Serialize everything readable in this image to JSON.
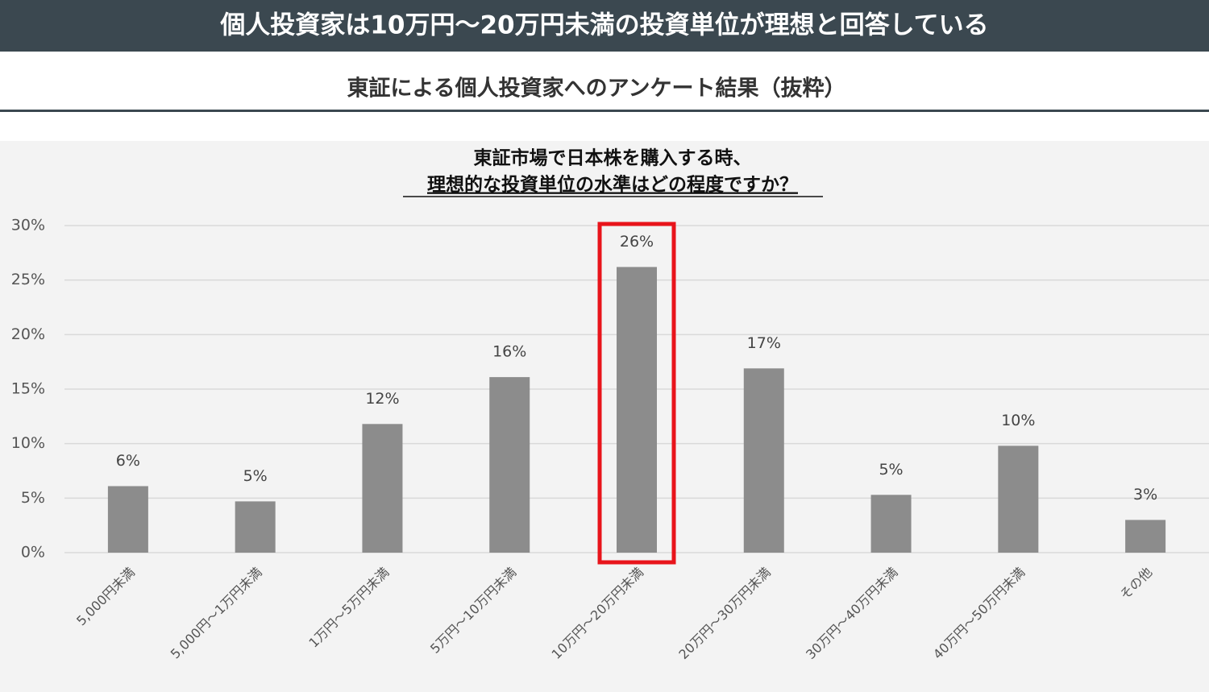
{
  "header": {
    "title": "個人投資家は10万円～20万円未満の投資単位が理想と回答している",
    "subtitle": "東証による個人投資家へのアンケート結果（抜粋）"
  },
  "chart_data": {
    "type": "bar",
    "title": [
      "東証市場で日本株を購入する時、",
      "理想的な投資単位の水準はどの程度ですか？"
    ],
    "categories": [
      "5,000円未満",
      "5,000円～1万円未満",
      "1万円～5万円未満",
      "5万円～10万円未満",
      "10万円～20万円未満",
      "20万円～30万円未満",
      "30万円～40万円未満",
      "40万円～50万円未満",
      "その他"
    ],
    "values": [
      6.1,
      4.7,
      11.8,
      16.1,
      26.2,
      16.9,
      5.3,
      9.8,
      3.0
    ],
    "value_labels": [
      "6%",
      "5%",
      "12%",
      "16%",
      "26%",
      "17%",
      "5%",
      "10%",
      "3%"
    ],
    "color": "#8c8c8c",
    "ylim": [
      0,
      30
    ],
    "yticks": [
      {
        "value": 0,
        "label": "0%"
      },
      {
        "value": 5,
        "label": "5%"
      },
      {
        "value": 10,
        "label": "10%"
      },
      {
        "value": 15,
        "label": "15%"
      },
      {
        "value": 20,
        "label": "20%"
      },
      {
        "value": 25,
        "label": "25%"
      },
      {
        "value": 30,
        "label": "30%"
      }
    ],
    "grid": true,
    "highlight": 4,
    "highlight_color": "#e8141b"
  }
}
